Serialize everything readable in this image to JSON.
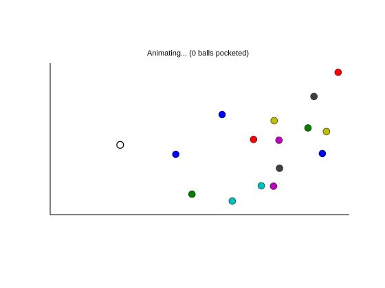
{
  "chart_data": {
    "type": "scatter",
    "title": "Animating... (0 balls pocketed)",
    "xlabel": "",
    "ylabel": "",
    "grid": false,
    "axes_visible": [
      "left",
      "bottom"
    ],
    "xlim": [
      0,
      100
    ],
    "ylim": [
      0,
      100
    ],
    "points": [
      {
        "x": 23.4,
        "y": 46.0,
        "color": "#ffffff",
        "edge": "#000000"
      },
      {
        "x": 42.0,
        "y": 39.8,
        "color": "#0000ff"
      },
      {
        "x": 57.5,
        "y": 66.0,
        "color": "#0000ff"
      },
      {
        "x": 91.0,
        "y": 40.3,
        "color": "#0000ff"
      },
      {
        "x": 68.0,
        "y": 49.6,
        "color": "#ff0000"
      },
      {
        "x": 96.3,
        "y": 93.9,
        "color": "#ff0000"
      },
      {
        "x": 74.9,
        "y": 62.0,
        "color": "#bfbf00"
      },
      {
        "x": 92.4,
        "y": 54.8,
        "color": "#bfbf00"
      },
      {
        "x": 86.2,
        "y": 57.2,
        "color": "#007f00"
      },
      {
        "x": 47.4,
        "y": 13.5,
        "color": "#007f00"
      },
      {
        "x": 76.5,
        "y": 49.1,
        "color": "#bf00bf"
      },
      {
        "x": 74.7,
        "y": 18.8,
        "color": "#bf00bf"
      },
      {
        "x": 88.2,
        "y": 77.9,
        "color": "#404040"
      },
      {
        "x": 76.7,
        "y": 30.6,
        "color": "#404040"
      },
      {
        "x": 70.6,
        "y": 19.0,
        "color": "#00bfbf"
      },
      {
        "x": 60.9,
        "y": 8.9,
        "color": "#00bfbf"
      }
    ]
  }
}
